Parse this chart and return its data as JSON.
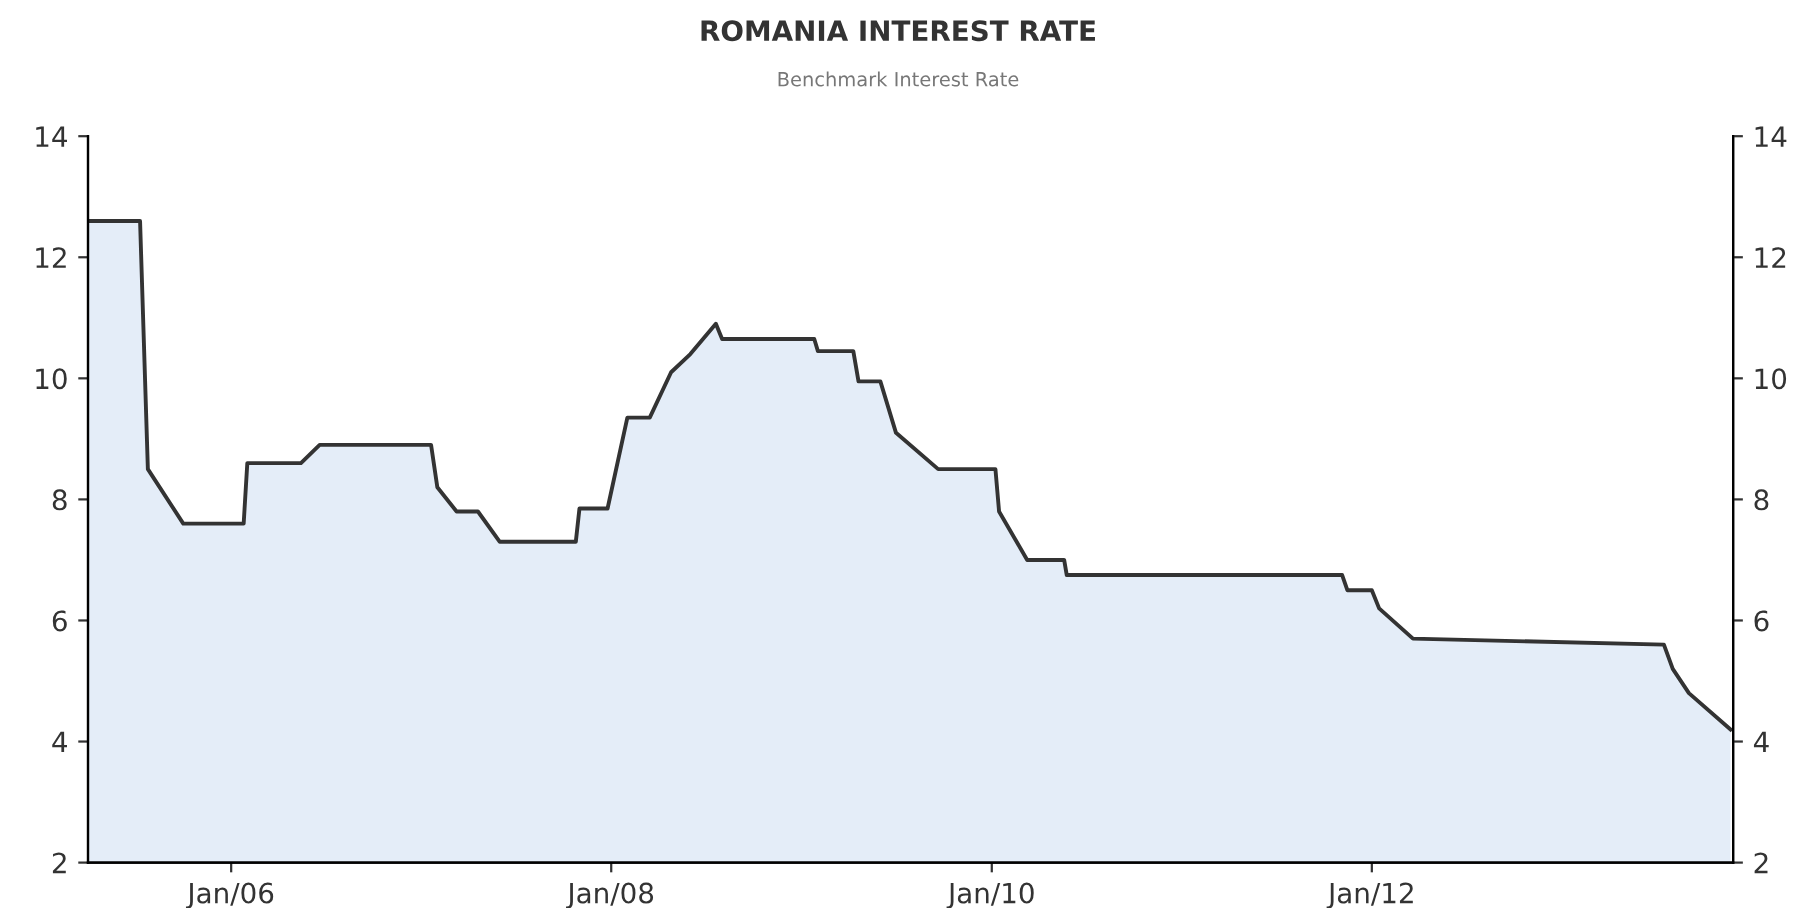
{
  "chart_data": {
    "type": "area",
    "title": "ROMANIA INTEREST RATE",
    "subtitle": "Benchmark Interest Rate",
    "x": [
      "2005-04-01",
      "2005-07-10",
      "2005-07-25",
      "2005-10-01",
      "2006-01-25",
      "2006-02-01",
      "2006-05-15",
      "2006-06-20",
      "2007-01-20",
      "2007-02-01",
      "2007-03-10",
      "2007-04-20",
      "2007-06-01",
      "2007-10-25",
      "2007-11-01",
      "2007-12-25",
      "2008-02-01",
      "2008-03-15",
      "2008-04-25",
      "2008-06-01",
      "2008-07-20",
      "2008-08-01",
      "2009-01-25",
      "2009-02-01",
      "2009-04-10",
      "2009-04-20",
      "2009-06-01",
      "2009-07-01",
      "2009-09-20",
      "2010-01-08",
      "2010-01-15",
      "2010-03-10",
      "2010-05-20",
      "2010-05-25",
      "2011-11-05",
      "2011-11-15",
      "2012-01-01",
      "2012-01-15",
      "2012-03-20",
      "2013-07-15",
      "2013-08-01",
      "2013-09-01",
      "2013-11-20"
    ],
    "series": [
      {
        "color": "#333333",
        "values": [
          12.6,
          12.6,
          8.5,
          7.6,
          7.6,
          8.6,
          8.6,
          8.9,
          8.9,
          8.2,
          7.8,
          7.8,
          7.3,
          7.3,
          7.85,
          7.85,
          9.35,
          9.35,
          10.1,
          10.4,
          10.9,
          10.65,
          10.65,
          10.45,
          10.45,
          9.95,
          9.95,
          9.1,
          8.5,
          8.5,
          7.8,
          7.0,
          7.0,
          6.75,
          6.75,
          6.5,
          6.5,
          6.2,
          5.7,
          5.6,
          5.2,
          4.8,
          4.2
        ]
      }
    ],
    "xlim": [
      "2005-04-01",
      "2013-11-25"
    ],
    "xticks": [
      {
        "value": "2006-01-01",
        "label": "Jan/06"
      },
      {
        "value": "2008-01-01",
        "label": "Jan/08"
      },
      {
        "value": "2010-01-01",
        "label": "Jan/10"
      },
      {
        "value": "2012-01-01",
        "label": "Jan/12"
      }
    ],
    "ylim": [
      2,
      14
    ],
    "yticks": [
      2,
      4,
      6,
      8,
      10,
      12,
      14
    ],
    "y2lim": [
      2,
      14
    ],
    "y2ticks": [
      2,
      4,
      6,
      8,
      10,
      12,
      14
    ],
    "grid": false,
    "legend": false,
    "marker": "none",
    "line_style": "solid"
  }
}
